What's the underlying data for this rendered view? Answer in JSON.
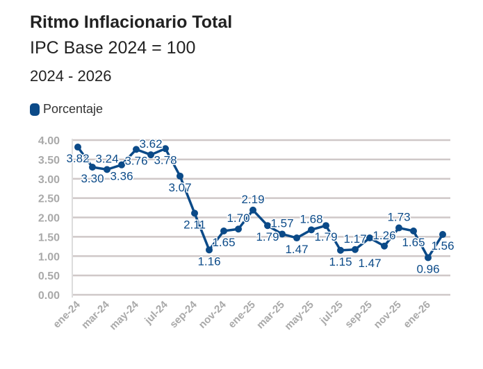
{
  "title": "Ritmo Inflacionario Total",
  "subtitle": "IPC Base 2024 = 100",
  "period": "2024 - 2026",
  "colors": {
    "series": "#0b4a88",
    "grid": "#cfc8c8",
    "tick": "#a9a9a9"
  },
  "chart_data": {
    "type": "line",
    "title": "Ritmo Inflacionario Total",
    "legend": "top-left",
    "grid": true,
    "ylim": [
      0,
      4
    ],
    "yticks": [
      "0.00",
      "0.50",
      "1.00",
      "1.50",
      "2.00",
      "2.50",
      "3.00",
      "3.50",
      "4.00"
    ],
    "x": [
      "ene-24",
      "feb-24",
      "mar-24",
      "abr-24",
      "may-24",
      "jun-24",
      "jul-24",
      "ago-24",
      "sep-24",
      "oct-24",
      "nov-24",
      "dic-24",
      "ene-25",
      "feb-25",
      "mar-25",
      "abr-25",
      "may-25",
      "jun-25",
      "jul-25",
      "ago-25",
      "sep-25",
      "oct-25",
      "nov-25",
      "dic-25",
      "ene-26",
      "feb-26"
    ],
    "xticks": [
      "ene-24",
      "mar-24",
      "may-24",
      "jul-24",
      "sep-24",
      "nov-24",
      "ene-25",
      "mar-25",
      "may-25",
      "jul-25",
      "sep-25",
      "nov-25",
      "ene-26"
    ],
    "series": [
      {
        "name": "Porcentaje",
        "values": [
          3.82,
          3.3,
          3.24,
          3.36,
          3.76,
          3.62,
          3.78,
          3.07,
          2.11,
          1.16,
          1.65,
          1.7,
          2.19,
          1.79,
          1.57,
          1.47,
          1.68,
          1.79,
          1.15,
          1.17,
          1.47,
          1.26,
          1.73,
          1.65,
          0.96,
          1.56
        ]
      }
    ]
  }
}
